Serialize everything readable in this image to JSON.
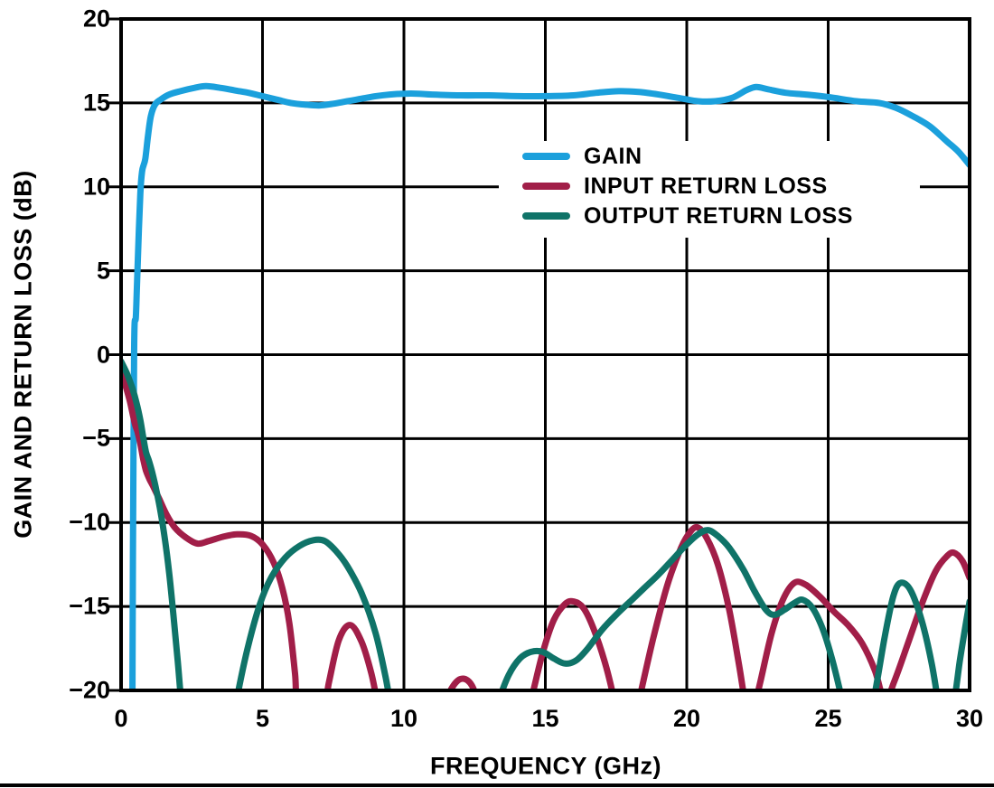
{
  "figure": {
    "background": "#ffffff",
    "grid_color": "#000000",
    "frame_color": "#000000",
    "text_color": "#000000"
  },
  "chart_data": {
    "type": "line",
    "title": "",
    "xlabel": "FREQUENCY (GHz)",
    "ylabel": "GAIN AND RETURN LOSS (dB)",
    "xlim": [
      0,
      30
    ],
    "ylim": [
      -20,
      20
    ],
    "x_ticks": [
      0,
      5,
      10,
      15,
      20,
      25,
      30
    ],
    "y_ticks": [
      20,
      15,
      10,
      5,
      0,
      -5,
      -10,
      -15,
      -20
    ],
    "x_tick_labels": [
      "0",
      "5",
      "10",
      "15",
      "20",
      "25",
      "30"
    ],
    "y_tick_labels": [
      "20",
      "15",
      "10",
      "5",
      "0",
      "−5",
      "−10",
      "−15",
      "−20"
    ],
    "grid": true,
    "legend_position": "inside upper right area",
    "series": [
      {
        "name": "GAIN",
        "color": "#1BA0DC",
        "points": [
          [
            0.4,
            -21
          ],
          [
            0.42,
            -12
          ],
          [
            0.44,
            -5
          ],
          [
            0.46,
            0
          ],
          [
            0.48,
            1.9
          ],
          [
            0.52,
            2.2
          ],
          [
            0.56,
            4.0
          ],
          [
            0.62,
            7.0
          ],
          [
            0.68,
            9.6
          ],
          [
            0.74,
            10.9
          ],
          [
            0.8,
            11.3
          ],
          [
            0.86,
            11.7
          ],
          [
            0.95,
            13.0
          ],
          [
            1.05,
            14.2
          ],
          [
            1.2,
            14.9
          ],
          [
            1.4,
            15.2
          ],
          [
            1.7,
            15.5
          ],
          [
            2.1,
            15.7
          ],
          [
            2.6,
            15.9
          ],
          [
            3.0,
            16.0
          ],
          [
            3.5,
            15.9
          ],
          [
            4.0,
            15.75
          ],
          [
            4.5,
            15.6
          ],
          [
            5.0,
            15.4
          ],
          [
            5.5,
            15.2
          ],
          [
            6.0,
            15.0
          ],
          [
            6.5,
            14.9
          ],
          [
            7.0,
            14.85
          ],
          [
            7.5,
            14.95
          ],
          [
            8.0,
            15.1
          ],
          [
            8.5,
            15.25
          ],
          [
            9.0,
            15.4
          ],
          [
            9.5,
            15.5
          ],
          [
            10.0,
            15.55
          ],
          [
            10.5,
            15.55
          ],
          [
            11.0,
            15.5
          ],
          [
            12.0,
            15.45
          ],
          [
            13.0,
            15.45
          ],
          [
            14.0,
            15.4
          ],
          [
            15.0,
            15.4
          ],
          [
            16.0,
            15.45
          ],
          [
            16.8,
            15.6
          ],
          [
            17.6,
            15.7
          ],
          [
            18.3,
            15.65
          ],
          [
            19.0,
            15.5
          ],
          [
            19.7,
            15.3
          ],
          [
            20.4,
            15.1
          ],
          [
            21.0,
            15.1
          ],
          [
            21.6,
            15.3
          ],
          [
            22.1,
            15.75
          ],
          [
            22.45,
            15.95
          ],
          [
            22.9,
            15.8
          ],
          [
            23.5,
            15.6
          ],
          [
            24.2,
            15.5
          ],
          [
            25.0,
            15.35
          ],
          [
            26.0,
            15.1
          ],
          [
            26.8,
            15.0
          ],
          [
            27.4,
            14.7
          ],
          [
            28.0,
            14.2
          ],
          [
            28.6,
            13.6
          ],
          [
            29.2,
            12.7
          ],
          [
            29.6,
            12.1
          ],
          [
            30.0,
            11.3
          ]
        ]
      },
      {
        "name": "INPUT RETURN LOSS",
        "color": "#A11E48",
        "points": [
          [
            0,
            -0.9
          ],
          [
            0.15,
            -1.8
          ],
          [
            0.3,
            -2.7
          ],
          [
            0.42,
            -3.6
          ],
          [
            0.5,
            -4.2
          ],
          [
            0.58,
            -4.6
          ],
          [
            0.68,
            -5.3
          ],
          [
            0.78,
            -6.2
          ],
          [
            0.88,
            -6.9
          ],
          [
            1.0,
            -7.4
          ],
          [
            1.15,
            -7.9
          ],
          [
            1.35,
            -8.6
          ],
          [
            1.6,
            -9.5
          ],
          [
            1.9,
            -10.3
          ],
          [
            2.3,
            -10.9
          ],
          [
            2.7,
            -11.25
          ],
          [
            3.1,
            -11.1
          ],
          [
            3.6,
            -10.85
          ],
          [
            4.1,
            -10.7
          ],
          [
            4.6,
            -10.8
          ],
          [
            5.0,
            -11.3
          ],
          [
            5.4,
            -12.4
          ],
          [
            5.7,
            -13.9
          ],
          [
            5.95,
            -16.0
          ],
          [
            6.15,
            -19.0
          ],
          [
            6.3,
            -21.5
          ],
          [
            7.1,
            -21.5
          ],
          [
            7.35,
            -19.5
          ],
          [
            7.7,
            -17.0
          ],
          [
            8.1,
            -16.1
          ],
          [
            8.5,
            -17.1
          ],
          [
            8.85,
            -19.0
          ],
          [
            9.1,
            -21.0
          ],
          [
            9.3,
            -22
          ],
          [
            11.2,
            -22
          ],
          [
            11.45,
            -20.7
          ],
          [
            11.8,
            -19.6
          ],
          [
            12.1,
            -19.3
          ],
          [
            12.4,
            -19.7
          ],
          [
            12.65,
            -20.8
          ],
          [
            12.9,
            -22
          ],
          [
            14.2,
            -22
          ],
          [
            14.5,
            -20.5
          ],
          [
            14.9,
            -17.8
          ],
          [
            15.3,
            -15.8
          ],
          [
            15.7,
            -14.85
          ],
          [
            16.0,
            -14.7
          ],
          [
            16.35,
            -15.1
          ],
          [
            16.7,
            -16.3
          ],
          [
            17.1,
            -18.3
          ],
          [
            17.4,
            -20.3
          ],
          [
            17.6,
            -22
          ],
          [
            18.1,
            -22
          ],
          [
            18.35,
            -20.3
          ],
          [
            18.8,
            -17.0
          ],
          [
            19.3,
            -13.8
          ],
          [
            19.8,
            -11.5
          ],
          [
            20.15,
            -10.5
          ],
          [
            20.4,
            -10.3
          ],
          [
            20.7,
            -10.9
          ],
          [
            21.1,
            -12.5
          ],
          [
            21.5,
            -15.2
          ],
          [
            21.85,
            -18.5
          ],
          [
            22.1,
            -21.0
          ],
          [
            22.3,
            -21.5
          ],
          [
            22.6,
            -19.5
          ],
          [
            23.0,
            -16.6
          ],
          [
            23.4,
            -14.6
          ],
          [
            23.8,
            -13.6
          ],
          [
            24.2,
            -13.7
          ],
          [
            24.7,
            -14.4
          ],
          [
            25.2,
            -15.3
          ],
          [
            25.7,
            -16.1
          ],
          [
            26.2,
            -17.2
          ],
          [
            26.65,
            -18.8
          ],
          [
            27.0,
            -20.6
          ],
          [
            27.35,
            -19.4
          ],
          [
            27.8,
            -17.3
          ],
          [
            28.3,
            -14.9
          ],
          [
            28.8,
            -12.9
          ],
          [
            29.2,
            -12.0
          ],
          [
            29.45,
            -11.8
          ],
          [
            29.75,
            -12.3
          ],
          [
            30.0,
            -13.3
          ]
        ]
      },
      {
        "name": "OUTPUT RETURN LOSS",
        "color": "#0F7368",
        "points": [
          [
            0,
            -0.4
          ],
          [
            0.2,
            -1.1
          ],
          [
            0.4,
            -2.0
          ],
          [
            0.55,
            -2.9
          ],
          [
            0.68,
            -3.9
          ],
          [
            0.78,
            -4.9
          ],
          [
            0.88,
            -5.8
          ],
          [
            0.98,
            -6.3
          ],
          [
            1.1,
            -7.0
          ],
          [
            1.25,
            -8.1
          ],
          [
            1.4,
            -9.4
          ],
          [
            1.55,
            -11.0
          ],
          [
            1.7,
            -13.0
          ],
          [
            1.85,
            -15.5
          ],
          [
            2.0,
            -18.2
          ],
          [
            2.15,
            -21.0
          ],
          [
            2.3,
            -22
          ],
          [
            3.95,
            -22
          ],
          [
            4.15,
            -20.0
          ],
          [
            4.5,
            -17.3
          ],
          [
            4.9,
            -14.9
          ],
          [
            5.3,
            -13.3
          ],
          [
            5.8,
            -12.1
          ],
          [
            6.3,
            -11.4
          ],
          [
            6.8,
            -11.05
          ],
          [
            7.2,
            -11.1
          ],
          [
            7.6,
            -11.7
          ],
          [
            8.0,
            -12.6
          ],
          [
            8.5,
            -14.2
          ],
          [
            9.0,
            -16.6
          ],
          [
            9.35,
            -19.2
          ],
          [
            9.6,
            -21.5
          ],
          [
            9.75,
            -22
          ],
          [
            13.1,
            -22
          ],
          [
            13.35,
            -20.6
          ],
          [
            13.7,
            -19.1
          ],
          [
            14.1,
            -18.1
          ],
          [
            14.5,
            -17.7
          ],
          [
            14.9,
            -17.7
          ],
          [
            15.3,
            -18.1
          ],
          [
            15.7,
            -18.4
          ],
          [
            16.1,
            -18.2
          ],
          [
            16.5,
            -17.5
          ],
          [
            17.0,
            -16.4
          ],
          [
            17.5,
            -15.5
          ],
          [
            18.0,
            -14.7
          ],
          [
            18.5,
            -13.9
          ],
          [
            19.0,
            -13.1
          ],
          [
            19.5,
            -12.2
          ],
          [
            20.0,
            -11.3
          ],
          [
            20.4,
            -10.7
          ],
          [
            20.75,
            -10.45
          ],
          [
            21.1,
            -10.8
          ],
          [
            21.5,
            -11.5
          ],
          [
            22.0,
            -12.8
          ],
          [
            22.4,
            -14.1
          ],
          [
            22.8,
            -15.2
          ],
          [
            23.1,
            -15.5
          ],
          [
            23.45,
            -15.2
          ],
          [
            23.8,
            -14.8
          ],
          [
            24.1,
            -14.6
          ],
          [
            24.45,
            -15.1
          ],
          [
            24.8,
            -16.3
          ],
          [
            25.1,
            -17.9
          ],
          [
            25.4,
            -19.9
          ],
          [
            25.6,
            -21.5
          ],
          [
            25.75,
            -22
          ],
          [
            26.4,
            -22
          ],
          [
            26.65,
            -20.2
          ],
          [
            27.0,
            -16.8
          ],
          [
            27.3,
            -14.4
          ],
          [
            27.55,
            -13.6
          ],
          [
            27.9,
            -14.0
          ],
          [
            28.3,
            -15.8
          ],
          [
            28.65,
            -18.3
          ],
          [
            28.9,
            -20.8
          ],
          [
            29.05,
            -22
          ],
          [
            29.25,
            -22
          ],
          [
            29.45,
            -20.7
          ],
          [
            29.65,
            -18.3
          ],
          [
            29.85,
            -16.2
          ],
          [
            30.0,
            -14.7
          ]
        ]
      }
    ]
  },
  "legend": {
    "items": [
      {
        "label": "GAIN",
        "color": "#1BA0DC"
      },
      {
        "label": "INPUT RETURN LOSS",
        "color": "#A11E48"
      },
      {
        "label": "OUTPUT RETURN LOSS",
        "color": "#0F7368"
      }
    ]
  }
}
